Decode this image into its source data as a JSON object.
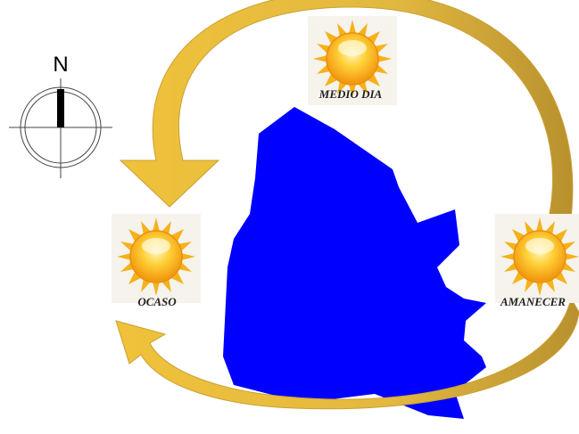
{
  "compass": {
    "label": "N"
  },
  "suns": [
    {
      "label": "MEDIO DIA"
    },
    {
      "label": "OCASO"
    },
    {
      "label": "AMANECER"
    }
  ]
}
